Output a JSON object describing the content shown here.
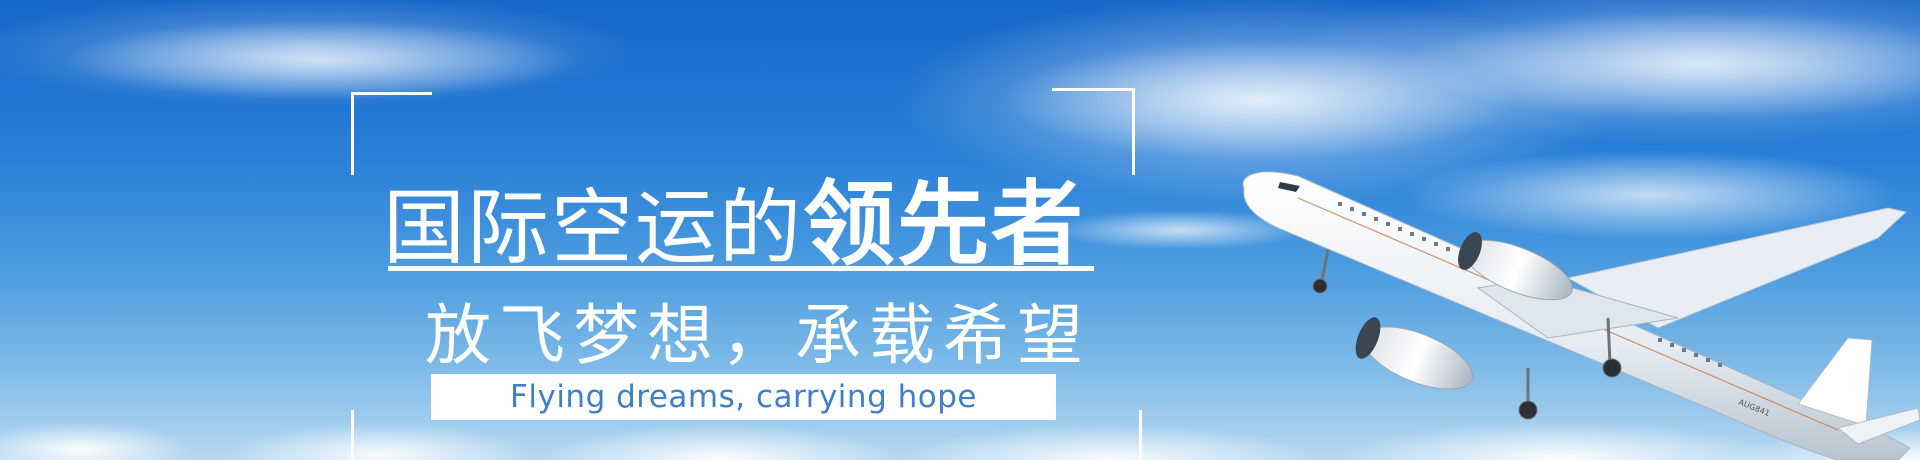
{
  "banner": {
    "headline_light": "国际空运的",
    "headline_bold": "领先者",
    "subline": "放飞梦想，承载希望",
    "tagline": "Flying dreams, carrying hope",
    "plane_livery_text": "AUG841"
  },
  "colors": {
    "sky_top": "#1766c9",
    "sky_bottom": "#b7d8f0",
    "text": "#ffffff",
    "tagline_text": "#3f7fc8"
  },
  "icons": {
    "plane": "airplane-photo"
  }
}
